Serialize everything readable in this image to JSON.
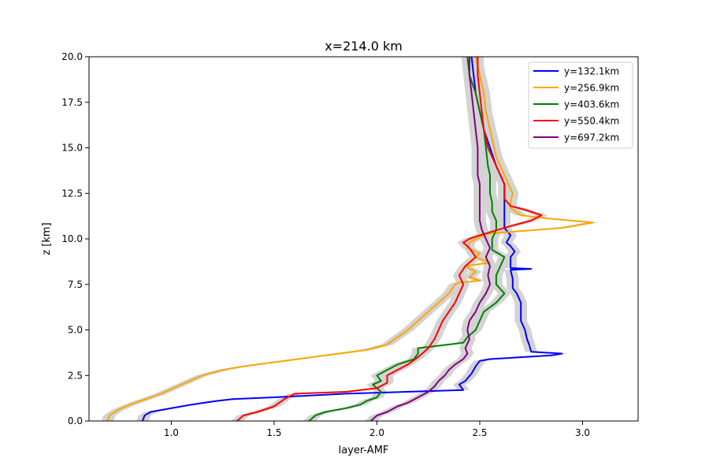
{
  "chart_data": {
    "type": "line",
    "title": "x=214.0 km",
    "xlabel": "layer-AMF",
    "ylabel": "z [km]",
    "xlim": [
      0.6,
      3.27
    ],
    "ylim": [
      0,
      20
    ],
    "x_ticks": [
      1.0,
      1.5,
      2.0,
      2.5,
      3.0
    ],
    "x_tick_labels": [
      "1.0",
      "1.5",
      "2.0",
      "2.5",
      "3.0"
    ],
    "y_ticks": [
      0,
      2.5,
      5,
      7.5,
      10,
      12.5,
      15,
      17.5,
      20
    ],
    "y_tick_labels": [
      "0.0",
      "2.5",
      "5.0",
      "7.5",
      "10.0",
      "12.5",
      "15.0",
      "17.5",
      "20.0"
    ],
    "grid": false,
    "legend_position": "top-right",
    "uncertainty_band_color": "#d3d3d3",
    "series": [
      {
        "name": "y=132.1km",
        "color": "#0000ff",
        "points": [
          [
            0.86,
            0
          ],
          [
            0.87,
            0.3
          ],
          [
            0.9,
            0.5
          ],
          [
            1.0,
            0.7
          ],
          [
            1.1,
            0.9
          ],
          [
            1.22,
            1.1
          ],
          [
            1.3,
            1.2
          ],
          [
            1.5,
            1.3
          ],
          [
            1.85,
            1.5
          ],
          [
            2.42,
            1.7
          ],
          [
            2.4,
            2.0
          ],
          [
            2.43,
            2.2
          ],
          [
            2.46,
            2.6
          ],
          [
            2.48,
            3.0
          ],
          [
            2.5,
            3.3
          ],
          [
            2.55,
            3.4
          ],
          [
            2.7,
            3.5
          ],
          [
            2.85,
            3.6
          ],
          [
            2.9,
            3.7
          ],
          [
            2.75,
            3.8
          ],
          [
            2.74,
            4.2
          ],
          [
            2.73,
            4.5
          ],
          [
            2.72,
            5.0
          ],
          [
            2.7,
            5.5
          ],
          [
            2.7,
            6.0
          ],
          [
            2.7,
            6.5
          ],
          [
            2.68,
            7.0
          ],
          [
            2.66,
            7.3
          ],
          [
            2.66,
            7.8
          ],
          [
            2.65,
            8.3
          ],
          [
            2.75,
            8.35
          ],
          [
            2.65,
            8.4
          ],
          [
            2.65,
            9.0
          ],
          [
            2.67,
            9.3
          ],
          [
            2.65,
            9.6
          ],
          [
            2.63,
            9.8
          ],
          [
            2.65,
            10.2
          ],
          [
            2.62,
            10.6
          ],
          [
            2.62,
            11.5
          ],
          [
            2.62,
            12.0
          ],
          [
            2.62,
            12.5
          ],
          [
            2.62,
            13.0
          ],
          [
            2.6,
            13.5
          ],
          [
            2.58,
            14.0
          ],
          [
            2.55,
            15.0
          ],
          [
            2.52,
            16.0
          ],
          [
            2.5,
            17.0
          ],
          [
            2.48,
            18.0
          ],
          [
            2.47,
            19.0
          ],
          [
            2.46,
            20.0
          ]
        ]
      },
      {
        "name": "y=256.9km",
        "color": "#ffa500",
        "points": [
          [
            0.69,
            0
          ],
          [
            0.7,
            0.3
          ],
          [
            0.74,
            0.6
          ],
          [
            0.8,
            0.9
          ],
          [
            0.85,
            1.1
          ],
          [
            0.95,
            1.5
          ],
          [
            1.05,
            2.0
          ],
          [
            1.15,
            2.5
          ],
          [
            1.25,
            2.8
          ],
          [
            1.35,
            3.0
          ],
          [
            1.55,
            3.3
          ],
          [
            1.75,
            3.6
          ],
          [
            1.95,
            3.9
          ],
          [
            2.05,
            4.2
          ],
          [
            2.1,
            4.6
          ],
          [
            2.15,
            5.0
          ],
          [
            2.2,
            5.5
          ],
          [
            2.25,
            6.0
          ],
          [
            2.3,
            6.5
          ],
          [
            2.35,
            7.0
          ],
          [
            2.38,
            7.5
          ],
          [
            2.4,
            7.6
          ],
          [
            2.5,
            7.7
          ],
          [
            2.45,
            7.9
          ],
          [
            2.48,
            8.2
          ],
          [
            2.43,
            8.5
          ],
          [
            2.55,
            8.7
          ],
          [
            2.48,
            9.0
          ],
          [
            2.5,
            9.2
          ],
          [
            2.44,
            9.5
          ],
          [
            2.45,
            9.8
          ],
          [
            2.5,
            10.1
          ],
          [
            2.55,
            10.3
          ],
          [
            2.9,
            10.6
          ],
          [
            3.05,
            10.9
          ],
          [
            2.85,
            11.1
          ],
          [
            2.7,
            11.3
          ],
          [
            2.65,
            11.7
          ],
          [
            2.65,
            12.0
          ],
          [
            2.66,
            12.5
          ],
          [
            2.64,
            13.0
          ],
          [
            2.62,
            13.5
          ],
          [
            2.6,
            14.0
          ],
          [
            2.58,
            14.5
          ],
          [
            2.57,
            15.0
          ],
          [
            2.55,
            16.0
          ],
          [
            2.53,
            17.0
          ],
          [
            2.52,
            18.0
          ],
          [
            2.5,
            19.0
          ],
          [
            2.48,
            20.0
          ]
        ]
      },
      {
        "name": "y=403.6km",
        "color": "#008000",
        "points": [
          [
            1.67,
            0
          ],
          [
            1.7,
            0.3
          ],
          [
            1.75,
            0.5
          ],
          [
            1.85,
            0.7
          ],
          [
            1.92,
            0.9
          ],
          [
            1.95,
            1.1
          ],
          [
            2.0,
            1.3
          ],
          [
            2.02,
            1.6
          ],
          [
            1.98,
            2.0
          ],
          [
            2.02,
            2.2
          ],
          [
            2.0,
            2.5
          ],
          [
            2.05,
            2.8
          ],
          [
            2.1,
            3.1
          ],
          [
            2.18,
            3.4
          ],
          [
            2.2,
            3.7
          ],
          [
            2.2,
            4.0
          ],
          [
            2.35,
            4.2
          ],
          [
            2.42,
            4.3
          ],
          [
            2.44,
            4.6
          ],
          [
            2.48,
            5.0
          ],
          [
            2.5,
            5.5
          ],
          [
            2.52,
            6.0
          ],
          [
            2.58,
            6.5
          ],
          [
            2.62,
            7.0
          ],
          [
            2.58,
            7.5
          ],
          [
            2.58,
            8.0
          ],
          [
            2.6,
            8.5
          ],
          [
            2.62,
            9.0
          ],
          [
            2.56,
            9.4
          ],
          [
            2.56,
            10.0
          ],
          [
            2.58,
            10.5
          ],
          [
            2.58,
            11.0
          ],
          [
            2.56,
            11.5
          ],
          [
            2.56,
            12.0
          ],
          [
            2.55,
            12.5
          ],
          [
            2.55,
            13.0
          ],
          [
            2.55,
            13.5
          ],
          [
            2.54,
            14.0
          ],
          [
            2.53,
            15.0
          ],
          [
            2.52,
            16.0
          ],
          [
            2.5,
            17.0
          ],
          [
            2.48,
            18.0
          ],
          [
            2.45,
            19.0
          ],
          [
            2.44,
            20.0
          ]
        ]
      },
      {
        "name": "y=550.4km",
        "color": "#ff0000",
        "points": [
          [
            1.32,
            0
          ],
          [
            1.35,
            0.3
          ],
          [
            1.42,
            0.5
          ],
          [
            1.5,
            0.8
          ],
          [
            1.55,
            1.2
          ],
          [
            1.6,
            1.5
          ],
          [
            1.85,
            1.6
          ],
          [
            2.0,
            1.8
          ],
          [
            2.05,
            2.1
          ],
          [
            2.05,
            2.5
          ],
          [
            2.1,
            2.8
          ],
          [
            2.15,
            3.1
          ],
          [
            2.2,
            3.5
          ],
          [
            2.25,
            4.0
          ],
          [
            2.28,
            4.5
          ],
          [
            2.3,
            5.0
          ],
          [
            2.32,
            5.5
          ],
          [
            2.35,
            6.0
          ],
          [
            2.38,
            6.5
          ],
          [
            2.4,
            7.0
          ],
          [
            2.42,
            7.5
          ],
          [
            2.4,
            8.0
          ],
          [
            2.43,
            8.5
          ],
          [
            2.48,
            9.0
          ],
          [
            2.45,
            9.5
          ],
          [
            2.42,
            9.8
          ],
          [
            2.45,
            10.0
          ],
          [
            2.5,
            10.2
          ],
          [
            2.65,
            10.7
          ],
          [
            2.75,
            11.0
          ],
          [
            2.8,
            11.3
          ],
          [
            2.72,
            11.6
          ],
          [
            2.65,
            11.8
          ],
          [
            2.62,
            12.2
          ],
          [
            2.62,
            12.5
          ],
          [
            2.62,
            13.0
          ],
          [
            2.6,
            13.5
          ],
          [
            2.58,
            14.0
          ],
          [
            2.56,
            14.5
          ],
          [
            2.54,
            15.0
          ],
          [
            2.52,
            16.0
          ],
          [
            2.51,
            17.0
          ],
          [
            2.5,
            18.0
          ],
          [
            2.49,
            19.0
          ],
          [
            2.49,
            20.0
          ]
        ]
      },
      {
        "name": "y=697.2km",
        "color": "#800080",
        "points": [
          [
            1.97,
            0
          ],
          [
            2.0,
            0.3
          ],
          [
            2.05,
            0.5
          ],
          [
            2.1,
            0.8
          ],
          [
            2.15,
            1.0
          ],
          [
            2.2,
            1.3
          ],
          [
            2.25,
            1.6
          ],
          [
            2.28,
            1.9
          ],
          [
            2.3,
            2.2
          ],
          [
            2.33,
            2.5
          ],
          [
            2.35,
            2.8
          ],
          [
            2.38,
            3.1
          ],
          [
            2.42,
            3.4
          ],
          [
            2.44,
            3.7
          ],
          [
            2.43,
            4.0
          ],
          [
            2.45,
            4.5
          ],
          [
            2.44,
            5.0
          ],
          [
            2.45,
            5.5
          ],
          [
            2.48,
            6.0
          ],
          [
            2.5,
            6.5
          ],
          [
            2.53,
            7.0
          ],
          [
            2.55,
            7.5
          ],
          [
            2.54,
            8.0
          ],
          [
            2.55,
            8.5
          ],
          [
            2.53,
            9.0
          ],
          [
            2.55,
            9.5
          ],
          [
            2.53,
            10.0
          ],
          [
            2.51,
            10.5
          ],
          [
            2.5,
            11.0
          ],
          [
            2.5,
            11.5
          ],
          [
            2.5,
            12.0
          ],
          [
            2.5,
            12.5
          ],
          [
            2.5,
            13.0
          ],
          [
            2.49,
            13.5
          ],
          [
            2.49,
            14.0
          ],
          [
            2.49,
            15.0
          ],
          [
            2.48,
            16.0
          ],
          [
            2.47,
            17.0
          ],
          [
            2.46,
            18.0
          ],
          [
            2.45,
            19.0
          ],
          [
            2.45,
            20.0
          ]
        ]
      }
    ]
  }
}
